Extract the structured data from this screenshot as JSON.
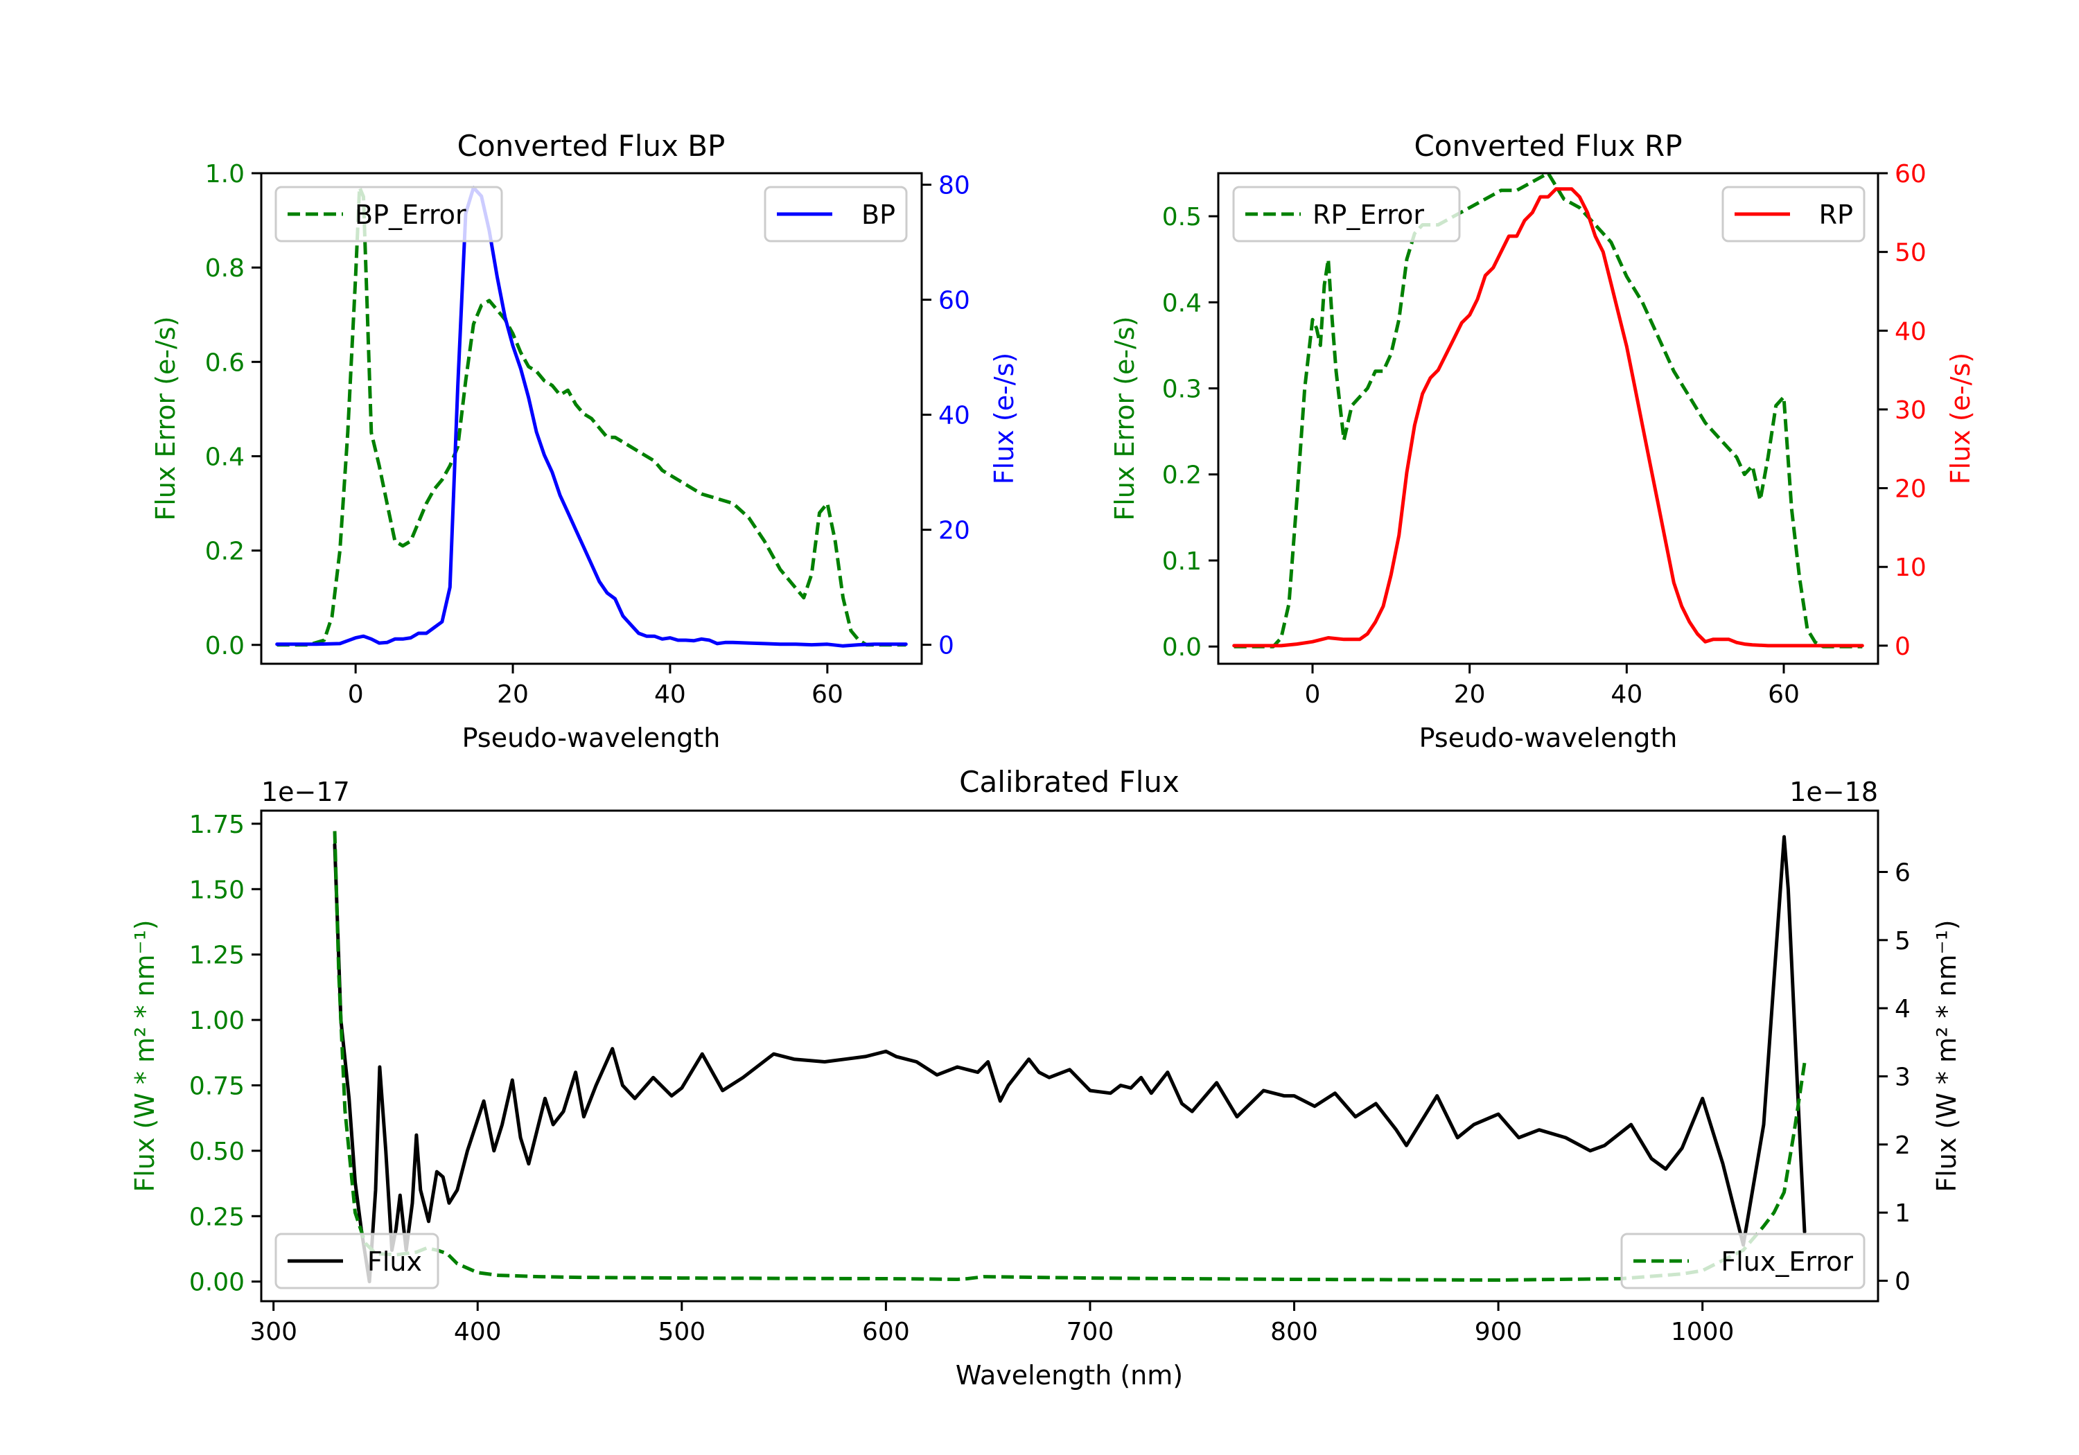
{
  "chart_data": [
    {
      "id": "bp",
      "type": "line",
      "title": "Converted Flux BP",
      "xlabel": "Pseudo-wavelength",
      "ylabel_left": "Flux Error (e-/s)",
      "ylabel_right": "Flux (e-/s)",
      "xlim": [
        -12,
        72
      ],
      "ylim_left": [
        -0.04,
        1.0
      ],
      "ylim_right": [
        -3.3,
        82
      ],
      "xticks": [
        0,
        20,
        40,
        60
      ],
      "yticks_left": [
        0.0,
        0.2,
        0.4,
        0.6,
        0.8,
        1.0
      ],
      "yticks_left_labels": [
        "0.0",
        "0.2",
        "0.4",
        "0.6",
        "0.8",
        "1.0"
      ],
      "yticks_right": [
        0,
        20,
        40,
        60,
        80
      ],
      "yticks_right_labels": [
        "0",
        "20",
        "40",
        "60",
        "80"
      ],
      "left_color": "#008000",
      "right_color": "#0000ff",
      "legend_left": {
        "label": "BP_Error",
        "placement": "upper-left"
      },
      "legend_right": {
        "label": "BP",
        "placement": "upper-right"
      },
      "series": [
        {
          "name": "BP_Error",
          "axis": "left",
          "style": "dashed",
          "color": "#008000",
          "x": [
            -10,
            -6,
            -4,
            -3,
            -2,
            -1,
            0,
            0.5,
            1,
            1.5,
            2,
            3,
            4,
            5,
            6,
            7,
            8,
            9,
            10,
            11,
            12,
            13,
            14,
            15,
            16,
            17,
            18,
            19,
            20,
            21,
            22,
            23,
            24,
            25,
            26,
            27,
            28,
            29,
            30,
            31,
            32,
            33,
            34,
            35,
            36,
            37,
            38,
            39,
            40,
            42,
            44,
            46,
            48,
            50,
            52,
            54,
            56,
            57,
            58,
            59,
            60,
            61,
            62,
            63,
            64,
            65,
            66,
            68,
            70
          ],
          "y": [
            0,
            0,
            0.01,
            0.06,
            0.2,
            0.45,
            0.78,
            0.97,
            0.95,
            0.7,
            0.45,
            0.38,
            0.3,
            0.22,
            0.21,
            0.22,
            0.26,
            0.3,
            0.33,
            0.35,
            0.38,
            0.42,
            0.56,
            0.68,
            0.72,
            0.73,
            0.71,
            0.69,
            0.66,
            0.62,
            0.59,
            0.58,
            0.56,
            0.55,
            0.53,
            0.54,
            0.51,
            0.49,
            0.48,
            0.46,
            0.44,
            0.44,
            0.43,
            0.42,
            0.41,
            0.4,
            0.39,
            0.37,
            0.36,
            0.34,
            0.32,
            0.31,
            0.3,
            0.27,
            0.22,
            0.16,
            0.12,
            0.1,
            0.15,
            0.28,
            0.3,
            0.22,
            0.1,
            0.03,
            0.01,
            0,
            0,
            0,
            0
          ]
        },
        {
          "name": "BP",
          "axis": "right",
          "style": "solid",
          "color": "#0000ff",
          "x": [
            -10,
            -5,
            -2,
            0,
            1,
            2,
            3,
            4,
            5,
            6,
            7,
            8,
            9,
            10,
            11,
            12,
            13,
            14,
            15,
            16,
            17,
            18,
            19,
            20,
            21,
            22,
            23,
            24,
            25,
            26,
            27,
            28,
            29,
            30,
            31,
            32,
            33,
            34,
            35,
            36,
            37,
            38,
            39,
            40,
            41,
            42,
            43,
            44,
            45,
            46,
            47,
            48,
            50,
            52,
            54,
            56,
            58,
            60,
            62,
            64,
            66,
            68,
            70
          ],
          "y": [
            0.1,
            0.1,
            0.2,
            1.2,
            1.5,
            1,
            0.3,
            0.4,
            1,
            1,
            1.2,
            2,
            2,
            3,
            4,
            10,
            45,
            75,
            79.5,
            78,
            72,
            64,
            57,
            52,
            48,
            43,
            37,
            33,
            30,
            26,
            23,
            20,
            17,
            14,
            11,
            9,
            8,
            5,
            3.5,
            2,
            1.5,
            1.5,
            1,
            1.2,
            0.8,
            0.8,
            0.7,
            1,
            0.8,
            0.2,
            0.4,
            0.4,
            0.3,
            0.2,
            0.1,
            0.1,
            0,
            0.1,
            -0.2,
            0,
            0.1,
            0.1,
            0.1
          ]
        }
      ]
    },
    {
      "id": "rp",
      "type": "line",
      "title": "Converted Flux RP",
      "xlabel": "Pseudo-wavelength",
      "ylabel_left": "Flux Error (e-/s)",
      "ylabel_right": "Flux (e-/s)",
      "xlim": [
        -12,
        72
      ],
      "ylim_left": [
        -0.02,
        0.55
      ],
      "ylim_right": [
        -2.3,
        60
      ],
      "xticks": [
        0,
        20,
        40,
        60
      ],
      "yticks_left": [
        0.0,
        0.1,
        0.2,
        0.3,
        0.4,
        0.5
      ],
      "yticks_left_labels": [
        "0.0",
        "0.1",
        "0.2",
        "0.3",
        "0.4",
        "0.5"
      ],
      "yticks_right": [
        0,
        10,
        20,
        30,
        40,
        50,
        60
      ],
      "yticks_right_labels": [
        "0",
        "10",
        "20",
        "30",
        "40",
        "50",
        "60"
      ],
      "left_color": "#008000",
      "right_color": "#ff0000",
      "legend_left": {
        "label": "RP_Error",
        "placement": "upper-left"
      },
      "legend_right": {
        "label": "RP",
        "placement": "upper-right"
      },
      "series": [
        {
          "name": "RP_Error",
          "axis": "left",
          "style": "dashed",
          "color": "#008000",
          "x": [
            -10,
            -5,
            -4,
            -3,
            -2,
            -1,
            0,
            0.5,
            1,
            1.5,
            2,
            2.5,
            3,
            4,
            5,
            6,
            7,
            8,
            9,
            10,
            11,
            12,
            13,
            14,
            15,
            16,
            18,
            20,
            22,
            24,
            26,
            28,
            30,
            32,
            34,
            36,
            38,
            40,
            42,
            44,
            46,
            48,
            50,
            52,
            54,
            55,
            56,
            57,
            58,
            59,
            60,
            61,
            62,
            63,
            64,
            65,
            66,
            70
          ],
          "y": [
            0,
            0,
            0.01,
            0.05,
            0.17,
            0.3,
            0.38,
            0.37,
            0.35,
            0.42,
            0.45,
            0.38,
            0.32,
            0.24,
            0.28,
            0.29,
            0.3,
            0.32,
            0.32,
            0.34,
            0.38,
            0.45,
            0.48,
            0.49,
            0.49,
            0.49,
            0.5,
            0.51,
            0.52,
            0.53,
            0.53,
            0.54,
            0.55,
            0.52,
            0.51,
            0.49,
            0.47,
            0.43,
            0.4,
            0.36,
            0.32,
            0.29,
            0.26,
            0.24,
            0.22,
            0.2,
            0.21,
            0.17,
            0.22,
            0.28,
            0.29,
            0.16,
            0.08,
            0.02,
            0.005,
            0,
            0,
            0
          ]
        },
        {
          "name": "RP",
          "axis": "right",
          "style": "solid",
          "color": "#ff0000",
          "x": [
            -10,
            -4,
            -2,
            0,
            2,
            4,
            6,
            7,
            8,
            9,
            10,
            11,
            12,
            13,
            14,
            15,
            16,
            17,
            18,
            19,
            20,
            21,
            22,
            23,
            24,
            25,
            26,
            27,
            28,
            29,
            30,
            31,
            32,
            33,
            34,
            35,
            36,
            37,
            38,
            39,
            40,
            41,
            42,
            43,
            44,
            45,
            46,
            47,
            48,
            49,
            50,
            51,
            52,
            53,
            54,
            55,
            56,
            58,
            60,
            62,
            64,
            66,
            70
          ],
          "y": [
            0,
            0,
            0.2,
            0.5,
            1,
            0.8,
            0.8,
            1.5,
            3,
            5,
            9,
            14,
            22,
            28,
            32,
            34,
            35,
            37,
            39,
            41,
            42,
            44,
            47,
            48,
            50,
            52,
            52,
            54,
            55,
            57,
            57,
            58,
            58,
            58,
            57,
            55,
            52,
            50,
            46,
            42,
            38,
            33,
            28,
            23,
            18,
            13,
            8,
            5,
            3,
            1.5,
            0.5,
            0.8,
            0.8,
            0.8,
            0.4,
            0.2,
            0.1,
            0,
            0,
            0,
            0,
            0,
            0
          ]
        }
      ]
    },
    {
      "id": "calibrated",
      "type": "line",
      "title": "Calibrated Flux",
      "xlabel": "Wavelength (nm)",
      "ylabel_left": "Flux (W * m² * nm⁻¹)",
      "ylabel_right": "Flux (W * m² * nm⁻¹)",
      "left_offset_label": "1e−17",
      "right_offset_label": "1e−18",
      "xlim": [
        294,
        1086
      ],
      "ylim_left": [
        -0.075,
        1.8
      ],
      "ylim_right": [
        -0.3,
        6.9
      ],
      "xticks": [
        300,
        400,
        500,
        600,
        700,
        800,
        900,
        1000
      ],
      "yticks_left": [
        0.0,
        0.25,
        0.5,
        0.75,
        1.0,
        1.25,
        1.5,
        1.75
      ],
      "yticks_left_labels": [
        "0.00",
        "0.25",
        "0.50",
        "0.75",
        "1.00",
        "1.25",
        "1.50",
        "1.75"
      ],
      "yticks_right": [
        0,
        1,
        2,
        3,
        4,
        5,
        6
      ],
      "yticks_right_labels": [
        "0",
        "1",
        "2",
        "3",
        "4",
        "5",
        "6"
      ],
      "left_color": "#008000",
      "right_color": "#000000",
      "legend_left": {
        "label": "Flux",
        "placement": "lower-left"
      },
      "legend_right": {
        "label": "Flux_Error",
        "placement": "lower-right"
      },
      "series": [
        {
          "name": "Flux",
          "axis": "left",
          "style": "solid",
          "color": "#000000",
          "x": [
            330,
            333,
            337,
            340,
            343,
            347,
            350,
            352,
            355,
            358,
            360,
            362,
            365,
            368,
            370,
            372,
            376,
            380,
            383,
            386,
            390,
            395,
            403,
            408,
            412,
            417,
            421,
            425,
            433,
            437,
            442,
            448,
            452,
            458,
            466,
            471,
            477,
            486,
            495,
            500,
            510,
            520,
            530,
            545,
            555,
            570,
            580,
            590,
            600,
            605,
            615,
            625,
            635,
            640,
            645,
            650,
            656,
            660,
            670,
            675,
            680,
            690,
            700,
            710,
            715,
            720,
            725,
            730,
            738,
            745,
            750,
            762,
            772,
            785,
            795,
            800,
            810,
            820,
            830,
            840,
            850,
            855,
            870,
            880,
            888,
            900,
            910,
            920,
            933,
            945,
            952,
            965,
            975,
            982,
            990,
            1000,
            1010,
            1020,
            1030,
            1040,
            1042,
            1045,
            1048,
            1050
          ],
          "y": [
            1.67,
            1.0,
            0.7,
            0.38,
            0.2,
            0.0,
            0.35,
            0.82,
            0.5,
            0.12,
            0.2,
            0.33,
            0.12,
            0.3,
            0.56,
            0.35,
            0.23,
            0.42,
            0.4,
            0.3,
            0.35,
            0.5,
            0.69,
            0.5,
            0.6,
            0.77,
            0.55,
            0.45,
            0.7,
            0.6,
            0.65,
            0.8,
            0.63,
            0.75,
            0.89,
            0.75,
            0.7,
            0.78,
            0.71,
            0.74,
            0.87,
            0.73,
            0.78,
            0.87,
            0.85,
            0.84,
            0.85,
            0.86,
            0.88,
            0.86,
            0.84,
            0.79,
            0.82,
            0.81,
            0.8,
            0.84,
            0.69,
            0.75,
            0.85,
            0.8,
            0.78,
            0.81,
            0.73,
            0.72,
            0.75,
            0.74,
            0.78,
            0.72,
            0.8,
            0.68,
            0.65,
            0.76,
            0.63,
            0.73,
            0.71,
            0.71,
            0.67,
            0.72,
            0.63,
            0.68,
            0.58,
            0.52,
            0.71,
            0.55,
            0.6,
            0.64,
            0.55,
            0.58,
            0.55,
            0.5,
            0.52,
            0.6,
            0.47,
            0.43,
            0.51,
            0.7,
            0.45,
            0.14,
            0.6,
            1.7,
            1.5,
            1.0,
            0.5,
            0.19
          ]
        },
        {
          "name": "Flux_Error",
          "axis": "right",
          "style": "dashed",
          "color": "#008000",
          "x": [
            330,
            332,
            335,
            340,
            345,
            350,
            360,
            370,
            375,
            380,
            385,
            390,
            400,
            410,
            430,
            450,
            500,
            550,
            600,
            620,
            635,
            640,
            648,
            700,
            800,
            900,
            960,
            990,
            1000,
            1010,
            1020,
            1030,
            1035,
            1040,
            1045,
            1050
          ],
          "y": [
            6.6,
            4.5,
            2.5,
            1.0,
            0.55,
            0.4,
            0.38,
            0.42,
            0.48,
            0.45,
            0.4,
            0.25,
            0.12,
            0.08,
            0.06,
            0.05,
            0.04,
            0.035,
            0.03,
            0.025,
            0.02,
            0.03,
            0.06,
            0.04,
            0.02,
            0.01,
            0.03,
            0.1,
            0.15,
            0.3,
            0.45,
            0.8,
            1.0,
            1.3,
            2.2,
            3.2
          ]
        }
      ]
    }
  ]
}
